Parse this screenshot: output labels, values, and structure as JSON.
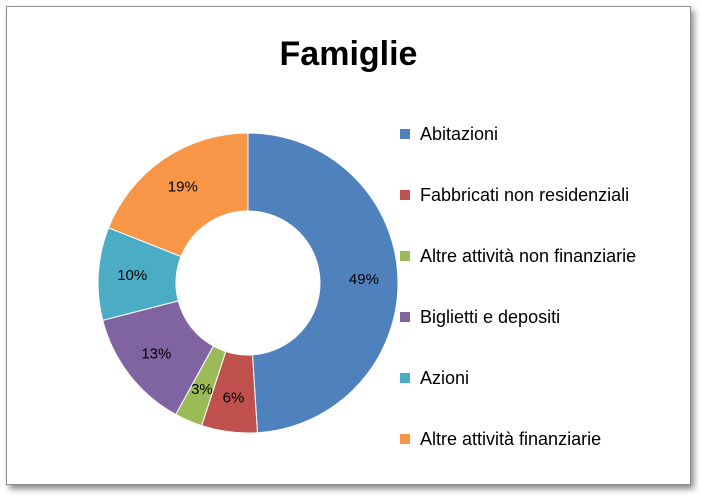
{
  "chart_data": {
    "type": "pie",
    "style": "donut",
    "title": "Famiglie",
    "categories": [
      "Abitazioni",
      "Fabbricati non residenziali",
      "Altre attività non finanziarie",
      "Biglietti e depositi",
      "Azioni",
      "Altre attività finanziarie"
    ],
    "values": [
      49,
      6,
      3,
      13,
      10,
      19
    ],
    "labels": [
      "49%",
      "6%",
      "3%",
      "13%",
      "10%",
      "19%"
    ],
    "colors": [
      "#4f81bd",
      "#c0504d",
      "#9bbb59",
      "#8064a2",
      "#4bacc6",
      "#f79646"
    ],
    "legend_position": "right"
  }
}
